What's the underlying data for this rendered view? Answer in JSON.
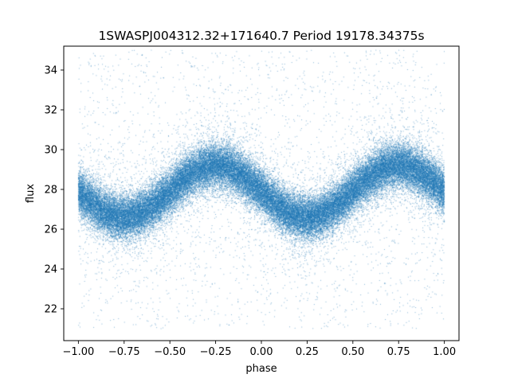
{
  "chart_data": {
    "type": "scatter",
    "title": "1SWASPJ004312.32+171640.7 Period 19178.34375s",
    "xlabel": "phase",
    "ylabel": "flux",
    "xlim": [
      -1.08,
      1.08
    ],
    "ylim": [
      20.4,
      35.2
    ],
    "xticks": [
      -1.0,
      -0.75,
      -0.5,
      -0.25,
      0.0,
      0.25,
      0.5,
      0.75,
      1.0
    ],
    "xtick_labels": [
      "−1.00",
      "−0.75",
      "−0.50",
      "−0.25",
      "0.00",
      "0.25",
      "0.50",
      "0.75",
      "1.00"
    ],
    "yticks": [
      22,
      24,
      26,
      28,
      30,
      32,
      34
    ],
    "ytick_labels": [
      "22",
      "24",
      "26",
      "28",
      "30",
      "32",
      "34"
    ],
    "grid": false,
    "legend": "none",
    "marker_color": "#1f77b4",
    "series": [
      {
        "phase_range": [
          -1.0,
          1.0
        ],
        "model": {
          "mean_flux": 27.9,
          "amplitude": 1.3,
          "maxima_phase": [
            -0.25,
            0.75
          ],
          "minima_phase": [
            -0.75,
            0.25
          ],
          "scatter_sigma": 0.55
        },
        "outlier_flux_range": [
          21.0,
          35.0
        ],
        "approx_points": 60000
      }
    ]
  }
}
